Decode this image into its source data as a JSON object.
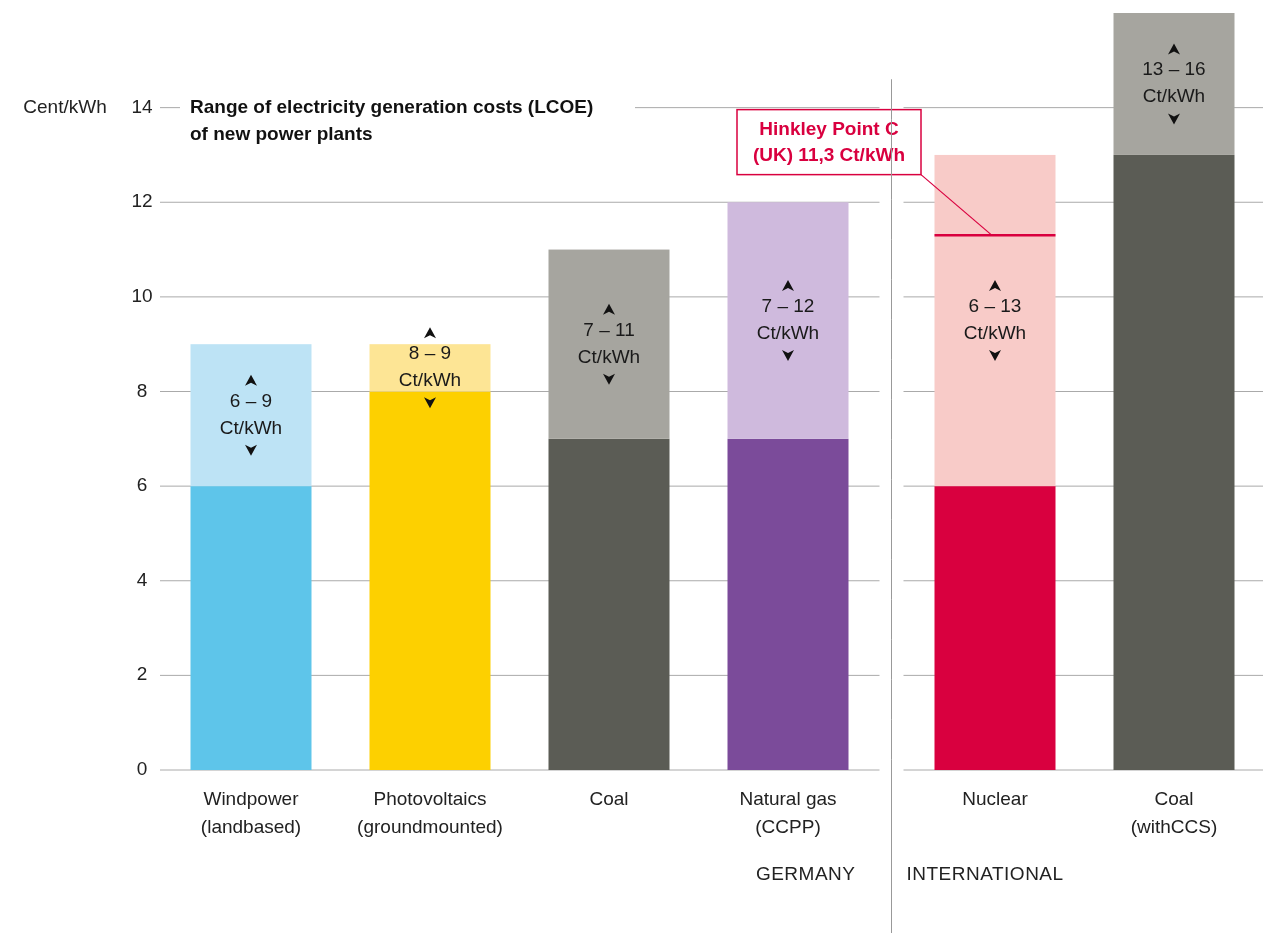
{
  "chart_data": {
    "type": "bar",
    "stacked": true,
    "title": "Range of electricity generation costs (LCOE)\nof new power plants",
    "ylabel": "Cent/kWh",
    "categories": [
      "Windpower\n(landbased)",
      "Photovoltaics\n(groundmounted)",
      "Coal",
      "Natural gas\n(CCPP)",
      "Nuclear",
      "Coal\n(withCCS)"
    ],
    "series": [
      {
        "colors": [
          "#5ec5ea",
          "#fdd000",
          "#5b5c55",
          "#7b4b9a",
          "#d9003f",
          "#5b5c55"
        ],
        "values": [
          6,
          8,
          7,
          7,
          6,
          13
        ]
      },
      {
        "colors": [
          "#bde3f5",
          "#fde595",
          "#a6a59f",
          "#cfbadd",
          "#f8cbc8",
          "#a6a59f"
        ],
        "values": [
          3,
          1,
          4,
          5,
          7,
          3
        ]
      }
    ],
    "ylim": [
      0,
      16
    ],
    "yticks": [
      0,
      2,
      4,
      6,
      8,
      10,
      12,
      14
    ],
    "grid": "y",
    "ref_lines": [
      {
        "axis": "y",
        "value": 11.3,
        "label": "Hinkley Point C\n(UK) 11,3 Ct/kWh",
        "color": "#d9003f"
      }
    ],
    "annotations": [
      "6 – 9\nCt/kWh",
      "8 – 9\nCt/kWh",
      "7 – 11\nCt/kWh",
      "7 – 12\nCt/kWh",
      "6 – 13\nCt/kWh",
      "13 – 16\nCt/kWh",
      "GERMANY",
      "INTERNATIONAL"
    ]
  }
}
